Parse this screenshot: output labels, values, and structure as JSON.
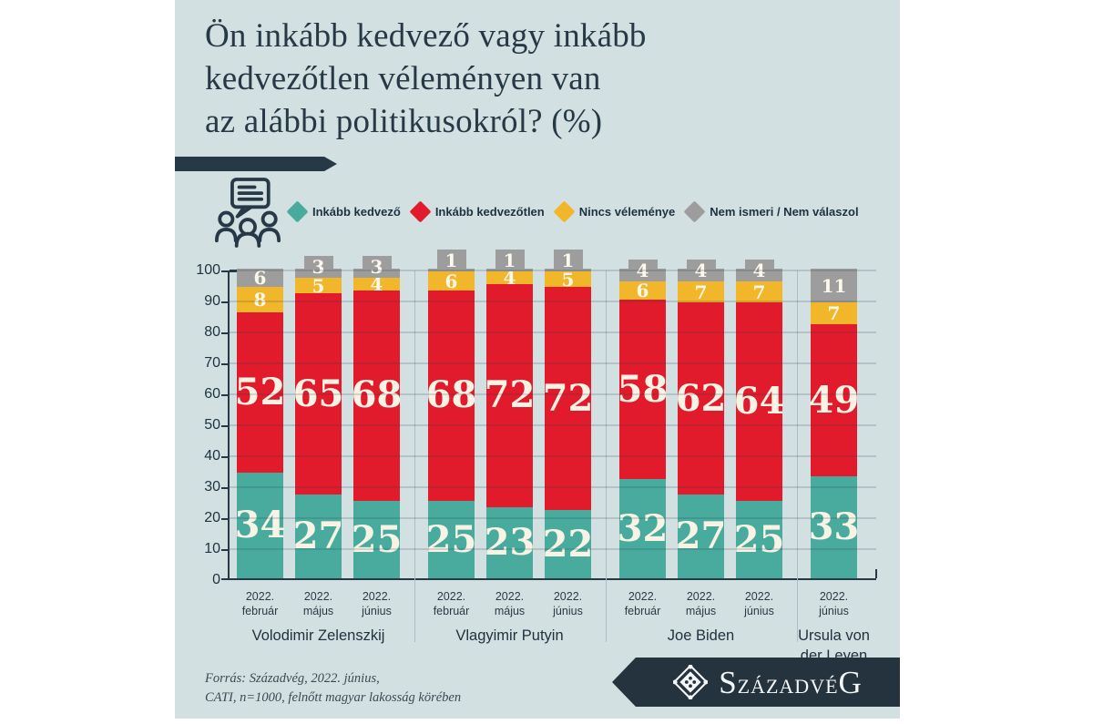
{
  "title": {
    "lines": [
      "Ön inkább kedvező vagy inkább",
      "kedvezőtlen véleményen van",
      "az alábbi politikusokról? (%)"
    ]
  },
  "icons": {
    "survey_icon": "people-with-speech-bubble",
    "legend_marker": "diamond",
    "logo_icon": "szazadveg-rosette-emblem"
  },
  "chart_data": {
    "type": "bar",
    "stacked": true,
    "unit": "%",
    "ylim": [
      0,
      100
    ],
    "yticks": [
      0,
      10,
      20,
      30,
      40,
      50,
      60,
      70,
      80,
      90,
      100
    ],
    "grid": true,
    "legend_position": "top",
    "series": [
      {
        "name": "Inkább kedvező",
        "color": "#48ab9e"
      },
      {
        "name": "Inkább kedvezőtlen",
        "color": "#e21b2c"
      },
      {
        "name": "Nincs véleménye",
        "color": "#f2b62a"
      },
      {
        "name": "Nem ismeri / Nem válaszol",
        "color": "#9d9d9d"
      }
    ],
    "groups": [
      {
        "label": "Volodimir Zelenszkij",
        "bars": [
          {
            "year": "2022.",
            "month": "február",
            "values": [
              34,
              52,
              8,
              6
            ]
          },
          {
            "year": "2022.",
            "month": "május",
            "values": [
              27,
              65,
              5,
              3
            ]
          },
          {
            "year": "2022.",
            "month": "június",
            "values": [
              25,
              68,
              4,
              3
            ]
          }
        ]
      },
      {
        "label": "Vlagyimir Putyin",
        "bars": [
          {
            "year": "2022.",
            "month": "február",
            "values": [
              25,
              68,
              6,
              1
            ]
          },
          {
            "year": "2022.",
            "month": "május",
            "values": [
              23,
              72,
              4,
              1
            ]
          },
          {
            "year": "2022.",
            "month": "június",
            "values": [
              22,
              72,
              5,
              1
            ]
          }
        ]
      },
      {
        "label": "Joe Biden",
        "bars": [
          {
            "year": "2022.",
            "month": "február",
            "values": [
              32,
              58,
              6,
              4
            ]
          },
          {
            "year": "2022.",
            "month": "május",
            "values": [
              27,
              62,
              7,
              4
            ]
          },
          {
            "year": "2022.",
            "month": "június",
            "values": [
              25,
              64,
              7,
              4
            ]
          }
        ]
      },
      {
        "label": "Ursula von der Leyen",
        "bars": [
          {
            "year": "2022.",
            "month": "június",
            "values": [
              33,
              49,
              7,
              11
            ]
          }
        ]
      }
    ]
  },
  "footer": {
    "line1": "Forrás: Századvég, 2022. június,",
    "line2": "CATI, n=1000, felnőtt magyar lakosság körében"
  },
  "logo": {
    "part1": "S",
    "part2": "zázadvé",
    "part3": "G"
  },
  "colors": {
    "panel_background": "#d3e0e1",
    "dark_slate": "#273946",
    "bar_value_text": "#f8f3e4"
  }
}
